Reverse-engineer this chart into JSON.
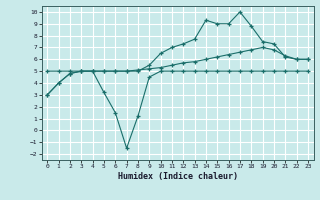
{
  "xlabel": "Humidex (Indice chaleur)",
  "bg_color": "#c9eaea",
  "grid_color": "#ffffff",
  "line_color": "#1a6e6a",
  "marker": "+",
  "xlim": [
    -0.5,
    23.5
  ],
  "ylim": [
    -2.5,
    10.5
  ],
  "xticks": [
    0,
    1,
    2,
    3,
    4,
    5,
    6,
    7,
    8,
    9,
    10,
    11,
    12,
    13,
    14,
    15,
    16,
    17,
    18,
    19,
    20,
    21,
    22,
    23
  ],
  "yticks": [
    -2,
    -1,
    0,
    1,
    2,
    3,
    4,
    5,
    6,
    7,
    8,
    9,
    10
  ],
  "line1_x": [
    0,
    1,
    2,
    3,
    4,
    5,
    6,
    7,
    8,
    9,
    10,
    11,
    12,
    13,
    14,
    15,
    16,
    17,
    18,
    19,
    20,
    21,
    22,
    23
  ],
  "line1_y": [
    3.0,
    4.0,
    4.8,
    5.0,
    5.0,
    3.2,
    1.5,
    -1.5,
    1.2,
    4.5,
    5.0,
    5.0,
    5.0,
    5.0,
    5.0,
    5.0,
    5.0,
    5.0,
    5.0,
    5.0,
    5.0,
    5.0,
    5.0,
    5.0
  ],
  "line2_x": [
    0,
    1,
    2,
    3,
    4,
    5,
    6,
    7,
    8,
    9,
    10,
    11,
    12,
    13,
    14,
    15,
    16,
    17,
    18,
    19,
    20,
    21,
    22,
    23
  ],
  "line2_y": [
    5.0,
    5.0,
    5.0,
    5.0,
    5.0,
    5.0,
    5.0,
    5.0,
    5.1,
    5.2,
    5.3,
    5.5,
    5.7,
    5.8,
    6.0,
    6.2,
    6.4,
    6.6,
    6.8,
    7.0,
    6.8,
    6.3,
    6.0,
    6.0
  ],
  "line3_x": [
    0,
    1,
    2,
    3,
    4,
    5,
    6,
    7,
    8,
    9,
    10,
    11,
    12,
    13,
    14,
    15,
    16,
    17,
    18,
    19,
    20,
    21,
    22,
    23
  ],
  "line3_y": [
    3.0,
    4.0,
    4.8,
    5.0,
    5.0,
    5.0,
    5.0,
    5.0,
    5.0,
    5.5,
    6.5,
    7.0,
    7.3,
    7.7,
    9.3,
    9.0,
    9.0,
    10.0,
    8.8,
    7.5,
    7.3,
    6.2,
    6.0,
    6.0
  ]
}
